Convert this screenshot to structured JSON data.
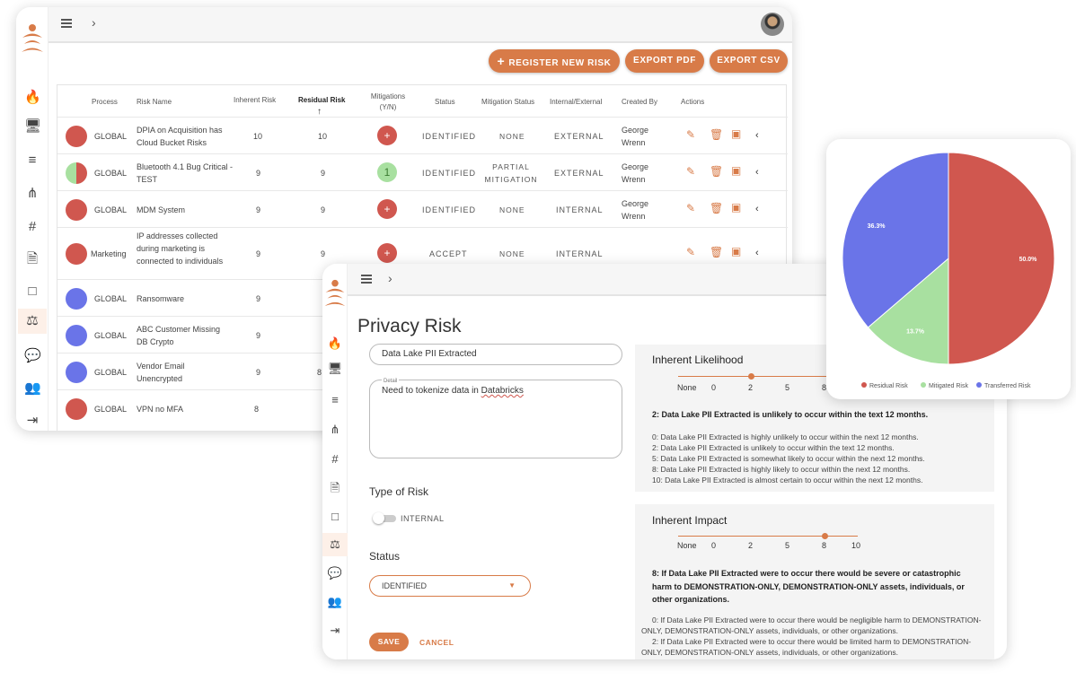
{
  "main_window": {
    "buttons": {
      "register": "REGISTER NEW RISK",
      "export_pdf": "EXPORT PDF",
      "export_csv": "EXPORT CSV"
    },
    "columns": [
      "Process",
      "Risk Name",
      "Inherent Risk",
      "Residual Risk",
      "Mitigations (Y/N)",
      "Status",
      "Mitigation Status",
      "Internal/External",
      "Created By",
      "Actions"
    ],
    "rows": [
      {
        "process": "GLOBAL",
        "name": "DPIA on Acquisition has Cloud Bucket Risks",
        "inherent": "10",
        "residual": "10",
        "mitigation": "+",
        "status": "IDENTIFIED",
        "mit_status": "NONE",
        "int_ext": "EXTERNAL",
        "created_by": "George Wrenn",
        "pie_color": "#d0574f"
      },
      {
        "process": "GLOBAL",
        "name": "Bluetooth 4.1 Bug Critical - TEST",
        "inherent": "9",
        "residual": "9",
        "mitigation": "1",
        "status": "IDENTIFIED",
        "mit_status": "PARTIAL MITIGATION",
        "int_ext": "EXTERNAL",
        "created_by": "George Wrenn",
        "pie_color": "#d0574f"
      },
      {
        "process": "GLOBAL",
        "name": "MDM System",
        "inherent": "9",
        "residual": "9",
        "mitigation": "+",
        "status": "IDENTIFIED",
        "mit_status": "NONE",
        "int_ext": "INTERNAL",
        "created_by": "George Wrenn",
        "pie_color": "#d0574f"
      },
      {
        "process": "Marketing",
        "name": "IP addresses collected during marketing is connected to individuals",
        "inherent": "9",
        "residual": "9",
        "mitigation": "+",
        "status": "ACCEPT",
        "mit_status": "NONE",
        "int_ext": "INTERNAL",
        "created_by": "",
        "pie_color": "#d0574f"
      },
      {
        "process": "GLOBAL",
        "name": "Ransomware",
        "inherent": "9",
        "residual": "",
        "pie_color": "#6a74e8"
      },
      {
        "process": "GLOBAL",
        "name": "ABC Customer Missing DB Crypto",
        "inherent": "9",
        "residual": "",
        "pie_color": "#6a74e8"
      },
      {
        "process": "GLOBAL",
        "name": "Vendor Email Unencrypted",
        "inherent": "9",
        "residual": "8",
        "pie_color": "#6a74e8"
      },
      {
        "process": "GLOBAL",
        "name": "VPN no MFA",
        "inherent": "8",
        "residual": "",
        "pie_color": "#d0574f"
      }
    ]
  },
  "privacy_window": {
    "title": "Privacy Risk",
    "risk_name": "Data Lake PII Extracted",
    "detail_label": "Detail",
    "detail_value": "Need to tokenize data in Databricks",
    "type_label": "Type of Risk",
    "type_value": "INTERNAL",
    "status_label": "Status",
    "status_value": "IDENTIFIED",
    "save": "SAVE",
    "cancel": "CANCEL",
    "likelihood": {
      "title": "Inherent Likelihood",
      "ticks": [
        "None",
        "0",
        "2",
        "5",
        "8"
      ],
      "value": 2,
      "summary": "2: Data Lake PII Extracted is unlikely to occur within the text 12 months.",
      "lines": [
        "0: Data Lake PII Extracted is highly unlikely to occur within the next 12 months.",
        "2: Data Lake PII Extracted is unlikely to occur within the text 12 months.",
        "5: Data Lake PII Extracted is somewhat likely to occur within the next 12 months.",
        "8: Data Lake PII Extracted is highly likely to occur within the next 12 months.",
        "10: Data Lake PII Extracted is almost certain to occur within the next 12 months."
      ]
    },
    "impact": {
      "title": "Inherent Impact",
      "ticks": [
        "None",
        "0",
        "2",
        "5",
        "8",
        "10"
      ],
      "value": 8,
      "summary": "8: If Data Lake PII Extracted were to occur there would be severe or catastrophic harm to DEMONSTRATION-ONLY, DEMONSTRATION-ONLY assets, individuals, or other organizations.",
      "lines": [
        "0: If Data Lake PII Extracted were to occur there would be negligible harm to DEMONSTRATION-ONLY, DEMONSTRATION-ONLY assets, individuals, or other organizations.",
        "2: If Data Lake PII Extracted were to occur there would be limited harm to DEMONSTRATION-ONLY, DEMONSTRATION-ONLY assets, individuals, or other organizations."
      ]
    }
  },
  "pie_chart": {
    "slices": [
      {
        "label": "Residual Risk",
        "value": 50.0,
        "display": "50.0%",
        "color": "#d0574f"
      },
      {
        "label": "Mitigated Risk",
        "value": 13.7,
        "display": "13.7%",
        "color": "#a8e0a0"
      },
      {
        "label": "Transferred Risk",
        "value": 36.3,
        "display": "36.3%",
        "color": "#6a74e8"
      }
    ]
  },
  "colors": {
    "accent": "#d87b48",
    "danger": "#d0574f",
    "success": "#a8e0a0",
    "blue": "#6a74e8"
  }
}
